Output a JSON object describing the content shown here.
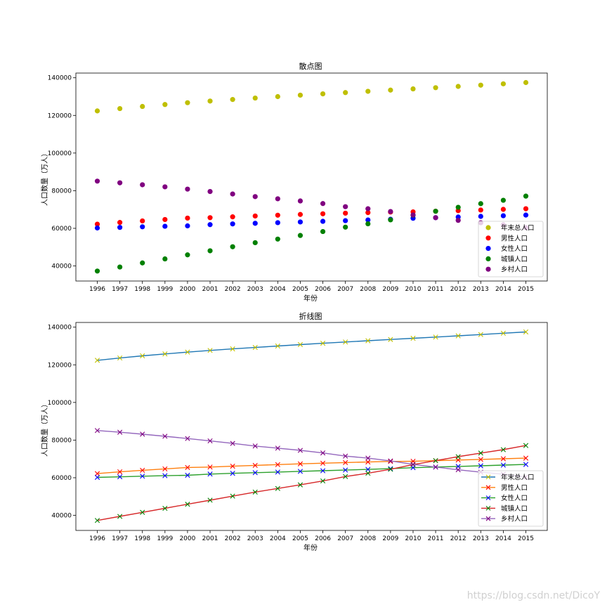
{
  "watermark": "https://blog.csdn.net/DicoY",
  "chart_data": [
    {
      "type": "scatter",
      "title": "散点图",
      "xlabel": "年份",
      "ylabel": "人口数量（万人）",
      "x": [
        1996,
        1997,
        1998,
        1999,
        2000,
        2001,
        2002,
        2003,
        2004,
        2005,
        2006,
        2007,
        2008,
        2009,
        2010,
        2011,
        2012,
        2013,
        2014,
        2015
      ],
      "ylim": [
        32000,
        142500
      ],
      "yticks": [
        40000,
        60000,
        80000,
        100000,
        120000,
        140000
      ],
      "legend_position": "lower-right",
      "grid": false,
      "series": [
        {
          "name": "年末总人口",
          "color": "#bfbf00",
          "marker": "o",
          "values": [
            122389,
            123626,
            124761,
            125786,
            126743,
            127627,
            128453,
            129227,
            129988,
            130756,
            131448,
            132129,
            132802,
            133450,
            134091,
            134735,
            135404,
            136072,
            136782,
            137462
          ]
        },
        {
          "name": "男性人口",
          "color": "#ff0000",
          "marker": "o",
          "values": [
            62200,
            63131,
            63940,
            64692,
            65437,
            65672,
            66115,
            66556,
            66976,
            67375,
            67728,
            68048,
            68357,
            68647,
            68748,
            69068,
            69395,
            69728,
            70079,
            70414
          ]
        },
        {
          "name": "女性人口",
          "color": "#0000ff",
          "marker": "o",
          "values": [
            60189,
            60495,
            60821,
            61094,
            61306,
            61955,
            62338,
            62671,
            63012,
            63381,
            63720,
            64081,
            64445,
            64803,
            65343,
            65667,
            66009,
            66344,
            66703,
            67048
          ]
        },
        {
          "name": "城镇人口",
          "color": "#008000",
          "marker": "o",
          "values": [
            37304,
            39449,
            41608,
            43748,
            45906,
            48064,
            50212,
            52376,
            54283,
            56212,
            58288,
            60633,
            62403,
            64512,
            66978,
            69079,
            71182,
            73111,
            74916,
            77116
          ]
        },
        {
          "name": "乡村人口",
          "color": "#800080",
          "marker": "o",
          "values": [
            85085,
            84177,
            83153,
            82038,
            80837,
            79563,
            78241,
            76851,
            75705,
            74544,
            73160,
            71496,
            70399,
            68938,
            67113,
            65656,
            64222,
            62961,
            61866,
            60346
          ]
        }
      ]
    },
    {
      "type": "line",
      "title": "折线图",
      "xlabel": "年份",
      "ylabel": "人口数量（万人）",
      "x": [
        1996,
        1997,
        1998,
        1999,
        2000,
        2001,
        2002,
        2003,
        2004,
        2005,
        2006,
        2007,
        2008,
        2009,
        2010,
        2011,
        2012,
        2013,
        2014,
        2015
      ],
      "ylim": [
        32000,
        142500
      ],
      "yticks": [
        40000,
        60000,
        80000,
        100000,
        120000,
        140000
      ],
      "legend_position": "lower-right",
      "grid": false,
      "series": [
        {
          "name": "年末总人口",
          "line_color": "#1f77b4",
          "marker_color": "#bfbf00",
          "marker": "x",
          "values": [
            122389,
            123626,
            124761,
            125786,
            126743,
            127627,
            128453,
            129227,
            129988,
            130756,
            131448,
            132129,
            132802,
            133450,
            134091,
            134735,
            135404,
            136072,
            136782,
            137462
          ]
        },
        {
          "name": "男性人口",
          "line_color": "#ff7f0e",
          "marker_color": "#ff0000",
          "marker": "x",
          "values": [
            62200,
            63131,
            63940,
            64692,
            65437,
            65672,
            66115,
            66556,
            66976,
            67375,
            67728,
            68048,
            68357,
            68647,
            68748,
            69068,
            69395,
            69728,
            70079,
            70414
          ]
        },
        {
          "name": "女性人口",
          "line_color": "#2ca02c",
          "marker_color": "#0000ff",
          "marker": "x",
          "values": [
            60189,
            60495,
            60821,
            61094,
            61306,
            61955,
            62338,
            62671,
            63012,
            63381,
            63720,
            64081,
            64445,
            64803,
            65343,
            65667,
            66009,
            66344,
            66703,
            67048
          ]
        },
        {
          "name": "城镇人口",
          "line_color": "#d62728",
          "marker_color": "#008000",
          "marker": "x",
          "values": [
            37304,
            39449,
            41608,
            43748,
            45906,
            48064,
            50212,
            52376,
            54283,
            56212,
            58288,
            60633,
            62403,
            64512,
            66978,
            69079,
            71182,
            73111,
            74916,
            77116
          ]
        },
        {
          "name": "乡村人口",
          "line_color": "#9467bd",
          "marker_color": "#800080",
          "marker": "x",
          "values": [
            85085,
            84177,
            83153,
            82038,
            80837,
            79563,
            78241,
            76851,
            75705,
            74544,
            73160,
            71496,
            70399,
            68938,
            67113,
            65656,
            64222,
            62961,
            61866,
            60346
          ]
        }
      ]
    }
  ]
}
